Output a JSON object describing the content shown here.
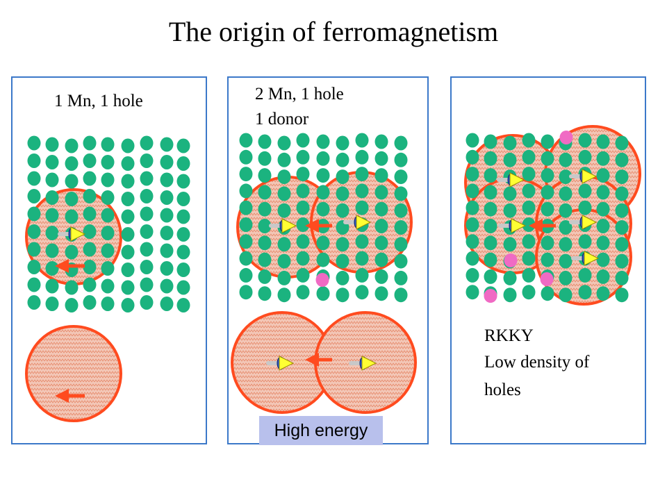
{
  "title": "The origin of ferromagnetism",
  "panels": [
    {
      "labels": [
        "1 Mn, 1 hole"
      ]
    },
    {
      "labels": [
        "2 Mn, 1 hole",
        "1 donor"
      ],
      "badge": "High energy"
    },
    {
      "labels": [
        "RKKY",
        "Low density of",
        "holes"
      ]
    }
  ],
  "colors": {
    "atom": "#1bb37f",
    "donor": "#f06ac4",
    "hole_cloud_border": "#ff4b1f",
    "hole_cloud_fill": "#f3c7b7",
    "spin_arrow": "#ffff33",
    "mn_core": "#2b55c8",
    "panel_border": "#3b78c9",
    "badge_bg": "#b8c0ec"
  }
}
